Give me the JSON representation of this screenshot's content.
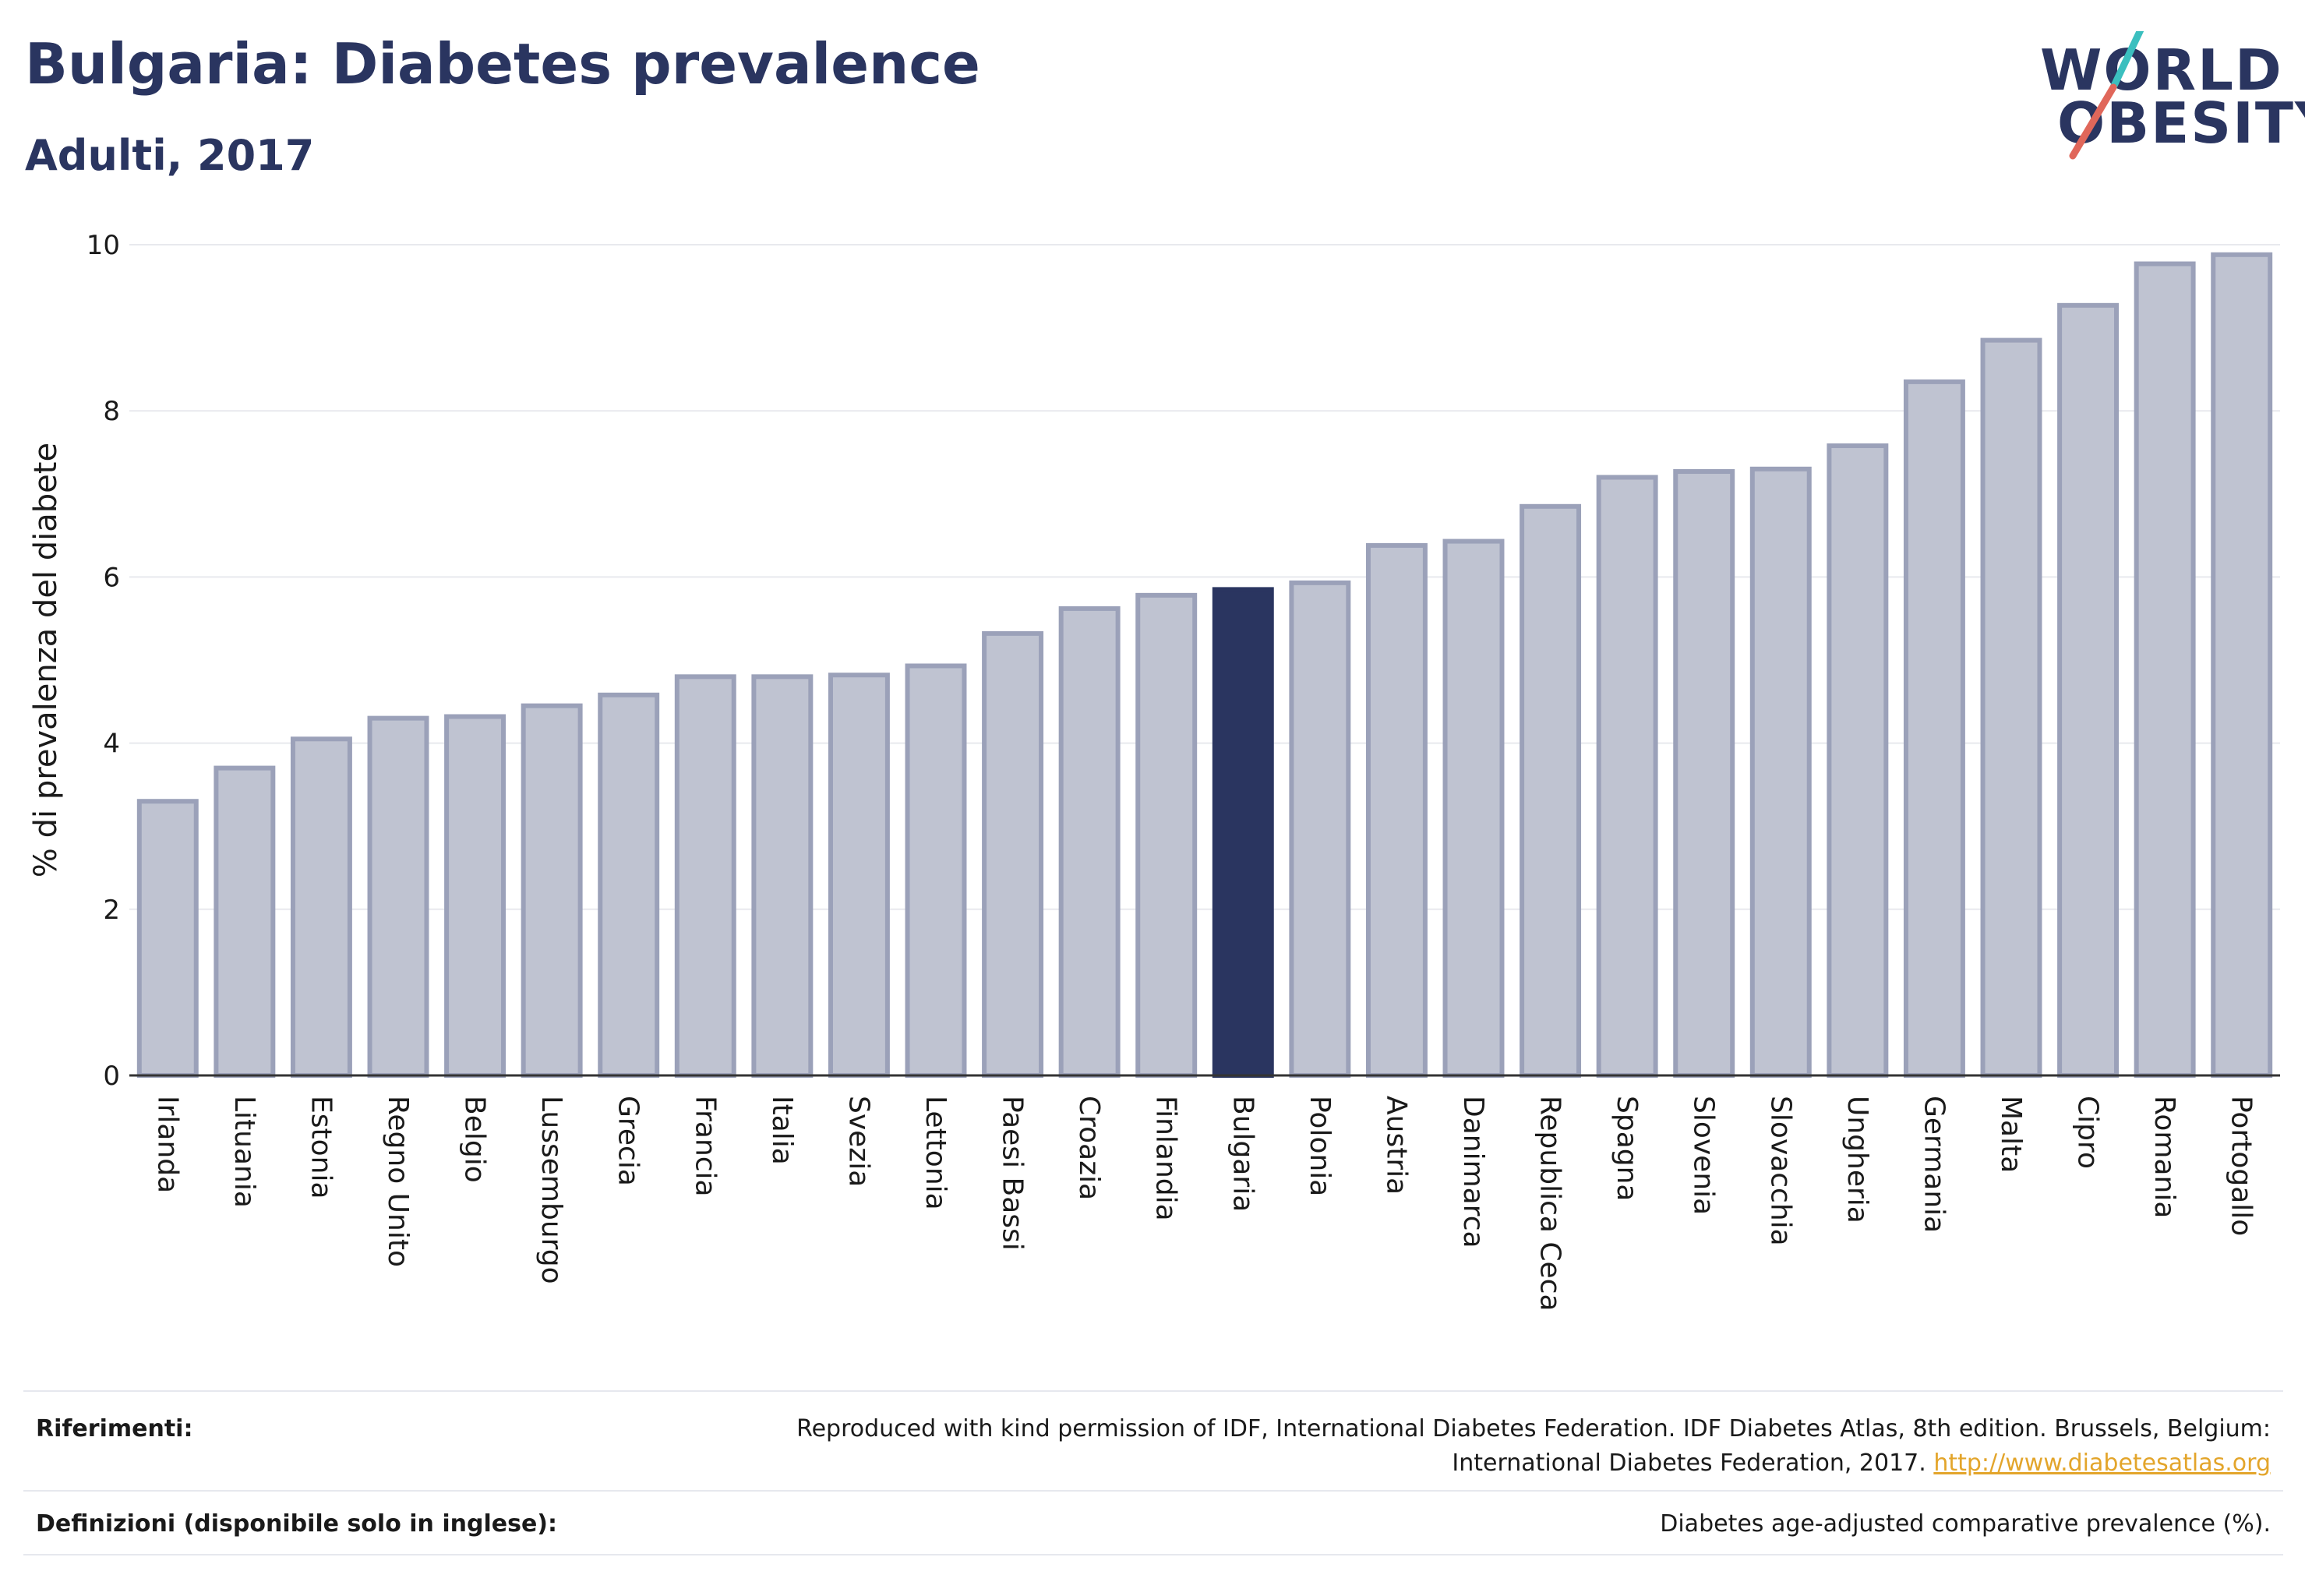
{
  "header": {
    "title": "Bulgaria: Diabetes prevalence",
    "subtitle": "Adulti, 2017"
  },
  "logo": {
    "line1": "WORLD",
    "line2": "OBESITY"
  },
  "colors": {
    "highlight": "#2a3560",
    "bar_fill": "#bfc3d1",
    "bar_stroke": "#9ba1b9",
    "grid": "#e8e9ee",
    "link": "#e3a52b",
    "logo_teal": "#3bbfbf",
    "logo_coral": "#e0675a"
  },
  "chart_data": {
    "type": "bar",
    "title": "Bulgaria: Diabetes prevalence",
    "subtitle": "Adulti, 2017",
    "xlabel": "",
    "ylabel": "% di prevalenza del diabete",
    "ylim": [
      0,
      10
    ],
    "yticks": [
      0,
      2,
      4,
      6,
      8,
      10
    ],
    "grid": true,
    "highlight": "Bulgaria",
    "categories": [
      "Irlanda",
      "Lituania",
      "Estonia",
      "Regno Unito",
      "Belgio",
      "Lussemburgo",
      "Grecia",
      "Francia",
      "Italia",
      "Svezia",
      "Lettonia",
      "Paesi Bassi",
      "Croazia",
      "Finlandia",
      "Bulgaria",
      "Polonia",
      "Austria",
      "Danimarca",
      "Republica Ceca",
      "Spagna",
      "Slovenia",
      "Slovacchia",
      "Ungheria",
      "Germania",
      "Malta",
      "Cipro",
      "Romania",
      "Portogallo"
    ],
    "values": [
      3.3,
      3.7,
      4.05,
      4.3,
      4.32,
      4.45,
      4.58,
      4.8,
      4.8,
      4.82,
      4.93,
      5.32,
      5.62,
      5.78,
      5.85,
      5.93,
      6.38,
      6.43,
      6.85,
      7.2,
      7.27,
      7.3,
      7.58,
      8.35,
      8.85,
      9.27,
      9.77,
      9.88
    ]
  },
  "footer": {
    "references_label": "Riferimenti:",
    "references_text_line1": "Reproduced with kind permission of IDF, International Diabetes Federation. IDF Diabetes Atlas, 8th edition. Brussels, Belgium:",
    "references_text_line2": "International Diabetes Federation, 2017.",
    "references_link": "http://www.diabetesatlas.org",
    "definitions_label": "Definizioni (disponibile solo in inglese):",
    "definitions_text": "Diabetes age-adjusted comparative prevalence (%)."
  }
}
